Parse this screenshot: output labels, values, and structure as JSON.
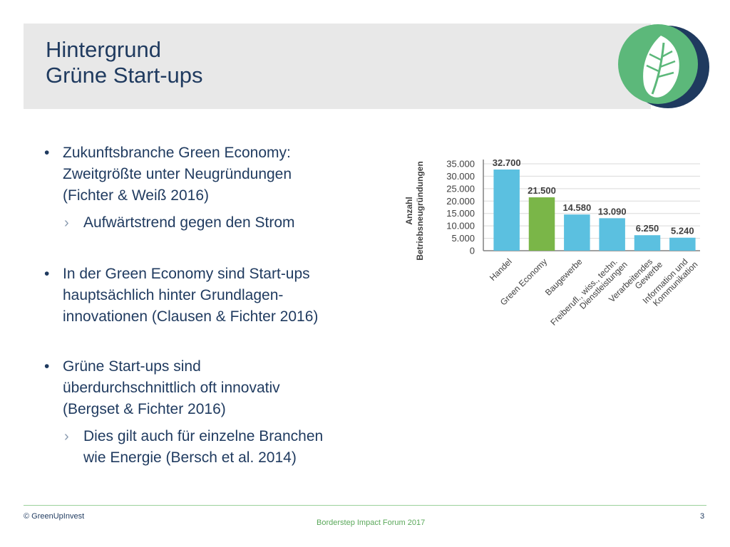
{
  "title": {
    "line1": "Hintergrund",
    "line2": "Grüne Start-ups"
  },
  "bullets": {
    "b1": {
      "line1": "Zukunftsbranche Green Economy:",
      "line2": "Zweitgrößte unter Neugründungen",
      "line3": "(Fichter & Weiß 2016)",
      "sub1": "Aufwärtstrend gegen den Strom"
    },
    "b2": {
      "line1": "In der Green Economy sind Start-ups",
      "line2": "hauptsächlich hinter Grundlagen-",
      "line3": "innovationen (Clausen & Fichter 2016)"
    },
    "b3": {
      "line1": "Grüne Start-ups sind",
      "line2": "überdurchschnittlich oft innovativ",
      "line3": "(Bergset & Fichter 2016)",
      "sub1_line1": "Dies gilt auch für einzelne Branchen",
      "sub1_line2": "wie Energie (Bersch et al. 2014)"
    },
    "bullet_glyph": "•",
    "sub_glyph": "›"
  },
  "chart_data": {
    "type": "bar",
    "categories": [
      "Handel",
      "Green Economy",
      "Baugewerbe",
      "Freiberufl., wiss., techn. Dienstleistungen",
      "Verarbeitendes Gewerbe",
      "Information und Kommunikation"
    ],
    "category_lines": [
      [
        "Handel"
      ],
      [
        "Green Economy"
      ],
      [
        "Baugewerbe"
      ],
      [
        "Freiberufl., wiss., techn.",
        "Dienstleistungen"
      ],
      [
        "Verarbeitendes",
        "Gewerbe"
      ],
      [
        "Information und",
        "Kommunikation"
      ]
    ],
    "values": [
      32700,
      21500,
      14580,
      13090,
      6250,
      5240
    ],
    "value_labels": [
      "32.700",
      "21.500",
      "14.580",
      "13.090",
      "6.250",
      "5.240"
    ],
    "ylabel_line1": "Anzahl",
    "ylabel_line2": "Betriebsneugründungen",
    "ylim": [
      0,
      35000
    ],
    "yticks": [
      0,
      5000,
      10000,
      15000,
      20000,
      25000,
      30000,
      35000
    ],
    "ytick_labels": [
      "0",
      "5.000",
      "10.000",
      "15.000",
      "20.000",
      "25.000",
      "30.000",
      "35.000"
    ],
    "grid": true,
    "colors": {
      "default": "#5bc0e0",
      "highlight": "#7ab648",
      "highlight_index": 1,
      "grid": "#d9d9d9",
      "text": "#404040"
    }
  },
  "logo": {
    "outer_color": "#1f3a5f",
    "inner_color": "#5cb87a",
    "leaf_color": "#ffffff"
  },
  "footer": {
    "copyright": "© GreenUpInvest",
    "event": "Borderstep Impact Forum 2017",
    "page_number": "3"
  }
}
